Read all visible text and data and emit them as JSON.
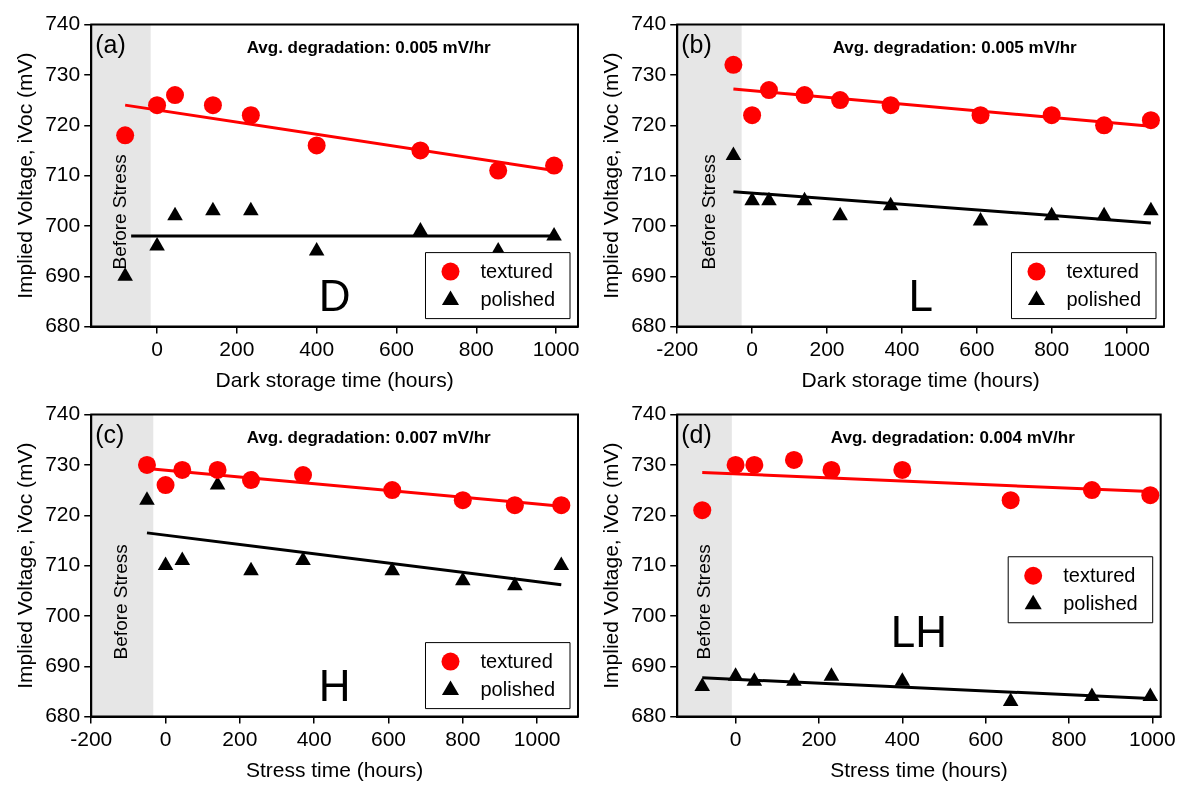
{
  "chart_data": [
    {
      "type": "scatter",
      "xlabel": "Dark storage time (hours)",
      "ylabel": "Implied Voltage, iVoc (mV)",
      "xlim": [
        -165,
        1055
      ],
      "xticks": [
        0,
        200,
        400,
        600,
        800,
        1000
      ],
      "ylim": [
        680,
        740
      ],
      "yticks": [
        680,
        690,
        700,
        710,
        720,
        730,
        740
      ],
      "legend": "bottom right",
      "x": [
        -80,
        0,
        45,
        140,
        235,
        400,
        660,
        855,
        995
      ],
      "annotations": [
        "(a)",
        "Avg. degradation: 0.005 mV/hr",
        "D"
      ],
      "bands": [
        {
          "axis": "x",
          "from": -165,
          "to": -16,
          "label": "Before Stress",
          "color": "#e6e6e6"
        }
      ],
      "series": [
        {
          "name": "textured",
          "color": "#ff0000",
          "marker": "circle",
          "values": [
            718,
            724,
            726,
            724,
            722,
            716,
            715,
            711,
            712
          ]
        },
        {
          "name": "polished",
          "color": "#000000",
          "marker": "triangle",
          "values": [
            690,
            696,
            702,
            703,
            703,
            695,
            699,
            695,
            698
          ]
        },
        {
          "type": "line",
          "color": "#ff0000",
          "x": [
            -80,
            995
          ],
          "values": [
            724,
            711
          ]
        },
        {
          "type": "line",
          "color": "#000000",
          "x": [
            -65,
            995
          ],
          "values": [
            698,
            698
          ]
        }
      ]
    },
    {
      "type": "scatter",
      "xlabel": "Dark storage time (hours)",
      "ylabel": "Implied Voltage, iVoc (mV)",
      "xlim": [
        -200,
        1100
      ],
      "xticks": [
        -200,
        0,
        200,
        400,
        600,
        800,
        1000
      ],
      "ylim": [
        680,
        740
      ],
      "yticks": [
        680,
        690,
        700,
        710,
        720,
        730,
        740
      ],
      "legend": "bottom right",
      "x": [
        -50,
        0,
        45,
        140,
        235,
        370,
        610,
        800,
        940,
        1065
      ],
      "annotations": [
        "(b)",
        "Avg. degradation: 0.005 mV/hr",
        "L"
      ],
      "bands": [
        {
          "axis": "x",
          "from": -200,
          "to": -28,
          "label": "Before Stress",
          "color": "#e6e6e6"
        }
      ],
      "series": [
        {
          "name": "textured",
          "color": "#ff0000",
          "marker": "circle",
          "values": [
            732,
            722,
            727,
            726,
            725,
            724,
            722,
            722,
            720,
            721
          ]
        },
        {
          "name": "polished",
          "color": "#000000",
          "marker": "triangle",
          "values": [
            714,
            705,
            705,
            705,
            702,
            704,
            701,
            702,
            702,
            703
          ]
        },
        {
          "type": "line",
          "color": "#ff0000",
          "x": [
            -50,
            1065
          ],
          "values": [
            727.2,
            719.8
          ]
        },
        {
          "type": "line",
          "color": "#000000",
          "x": [
            -50,
            1065
          ],
          "values": [
            706.8,
            700.6
          ]
        }
      ]
    },
    {
      "type": "scatter",
      "xlabel": "Stress time (hours)",
      "ylabel": "Implied Voltage, iVoc (mV)",
      "xlim": [
        -200,
        1110
      ],
      "xticks": [
        -200,
        0,
        200,
        400,
        600,
        800,
        1000
      ],
      "ylim": [
        680,
        740
      ],
      "yticks": [
        680,
        690,
        700,
        710,
        720,
        730,
        740
      ],
      "legend": "bottom right",
      "x": [
        -50,
        0,
        45,
        140,
        230,
        370,
        610,
        800,
        940,
        1065
      ],
      "annotations": [
        "(c)",
        "Avg. degradation: 0.007 mV/hr",
        "H"
      ],
      "bands": [
        {
          "axis": "x",
          "from": -200,
          "to": -33,
          "label": "Before Stress",
          "color": "#e6e6e6"
        }
      ],
      "series": [
        {
          "name": "textured",
          "color": "#ff0000",
          "marker": "circle",
          "values": [
            730,
            726,
            729,
            729,
            727,
            728,
            725,
            723,
            722,
            722
          ]
        },
        {
          "name": "polished",
          "color": "#000000",
          "marker": "triangle",
          "values": [
            723,
            710,
            711,
            726,
            709,
            711,
            709,
            707,
            706,
            710
          ]
        },
        {
          "type": "line",
          "color": "#ff0000",
          "x": [
            -50,
            1065
          ],
          "values": [
            729.3,
            721.8
          ]
        },
        {
          "type": "line",
          "color": "#000000",
          "x": [
            -50,
            1065
          ],
          "values": [
            716.5,
            706.2
          ]
        }
      ]
    },
    {
      "type": "scatter",
      "xlabel": "Stress time (hours)",
      "ylabel": "Implied Voltage, iVoc (mV)",
      "xlim": [
        -140,
        1020
      ],
      "xticks": [
        0,
        200,
        400,
        600,
        800,
        1000
      ],
      "ylim": [
        680,
        740
      ],
      "yticks": [
        680,
        690,
        700,
        710,
        720,
        730,
        740
      ],
      "legend": "right",
      "x": [
        -80,
        0,
        45,
        140,
        230,
        400,
        660,
        855,
        995
      ],
      "annotations": [
        "(d)",
        "Avg. degradation: 0.004 mV/hr",
        "LH"
      ],
      "bands": [
        {
          "axis": "x",
          "from": -140,
          "to": -9,
          "label": "Before Stress",
          "color": "#e6e6e6"
        }
      ],
      "series": [
        {
          "name": "textured",
          "color": "#ff0000",
          "marker": "circle",
          "values": [
            721,
            730,
            730,
            731,
            729,
            729,
            723,
            725,
            724
          ]
        },
        {
          "name": "polished",
          "color": "#000000",
          "marker": "triangle",
          "values": [
            686,
            688,
            687,
            687,
            688,
            687,
            683,
            684,
            684
          ]
        },
        {
          "type": "line",
          "color": "#ff0000",
          "x": [
            -80,
            995
          ],
          "values": [
            728.5,
            724.7
          ]
        },
        {
          "type": "line",
          "color": "#000000",
          "x": [
            -80,
            995
          ],
          "values": [
            687.7,
            683.6
          ]
        }
      ]
    }
  ]
}
